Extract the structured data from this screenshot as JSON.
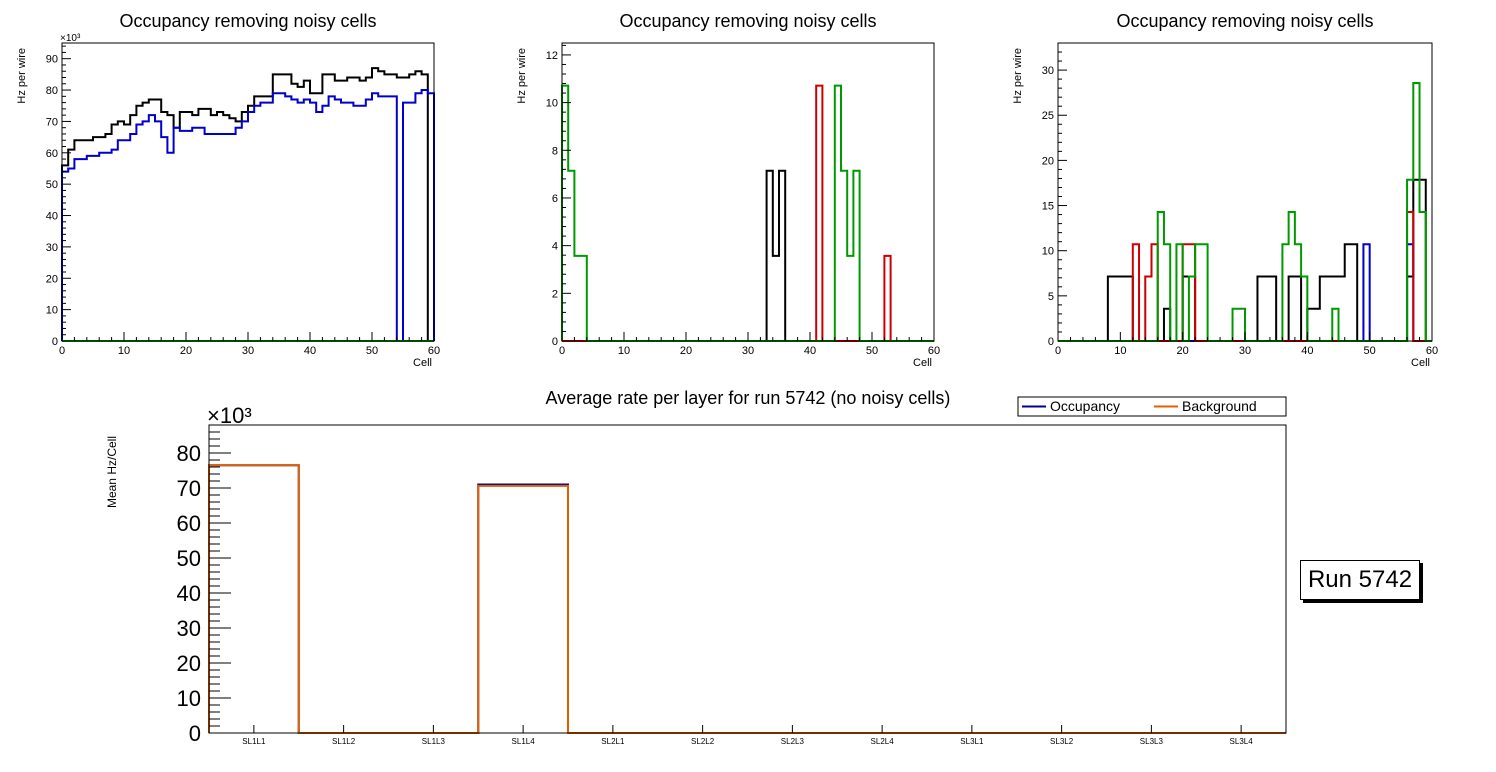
{
  "colors": {
    "black": "#000000",
    "blue": "#0000cc",
    "red": "#cc0000",
    "green": "#009900",
    "orange": "#e06000",
    "navy": "#000099"
  },
  "run_label": "Run 5742",
  "chart_data": [
    {
      "type": "step",
      "title": "Occupancy removing noisy cells",
      "xlabel": "Cell",
      "ylabel": "Hz per wire",
      "exponent_label": "×10³",
      "xlim": [
        0,
        60
      ],
      "ylim": [
        0,
        95000
      ],
      "xticks": [
        "0",
        "10",
        "20",
        "30",
        "40",
        "50",
        "60"
      ],
      "yticks": [
        "0",
        "10",
        "20",
        "30",
        "40",
        "50",
        "60",
        "70",
        "80",
        "90"
      ],
      "ytick_values": [
        0,
        10000,
        20000,
        30000,
        40000,
        50000,
        60000,
        70000,
        80000,
        90000
      ],
      "series": [
        {
          "name": "black",
          "color": "black",
          "values": [
            56000,
            61000,
            64000,
            64000,
            64000,
            65000,
            65000,
            66000,
            69000,
            70000,
            69000,
            72000,
            75000,
            76000,
            77000,
            77000,
            73000,
            72000,
            68000,
            73000,
            73000,
            72000,
            74000,
            74000,
            72000,
            73000,
            72000,
            71000,
            70000,
            73000,
            75000,
            78000,
            78000,
            78000,
            85000,
            85000,
            85000,
            82000,
            81000,
            83000,
            79000,
            79000,
            85000,
            85000,
            83000,
            83000,
            84000,
            84000,
            83000,
            84000,
            87000,
            86000,
            85000,
            85000,
            84000,
            84000,
            85000,
            86000,
            85000,
            0
          ]
        },
        {
          "name": "blue",
          "color": "blue",
          "values": [
            54000,
            55000,
            58000,
            58000,
            59000,
            59000,
            60000,
            60000,
            61000,
            64000,
            64000,
            66000,
            69000,
            70000,
            72000,
            70000,
            65000,
            60000,
            68000,
            67000,
            67000,
            68000,
            68000,
            66000,
            66000,
            66000,
            66000,
            66000,
            68000,
            70000,
            73000,
            75000,
            76000,
            76000,
            79000,
            79000,
            78000,
            77000,
            76000,
            77000,
            76000,
            73000,
            75000,
            78000,
            77000,
            76000,
            76000,
            75000,
            75000,
            77000,
            79000,
            78000,
            78000,
            78000,
            0,
            76000,
            76000,
            79000,
            80000,
            79000
          ]
        },
        {
          "name": "green",
          "color": "green",
          "values": [
            0,
            0,
            0,
            0,
            0,
            0,
            0,
            0,
            0,
            0,
            0,
            0,
            0,
            0,
            0,
            0,
            0,
            0,
            0,
            0,
            0,
            0,
            0,
            0,
            0,
            0,
            0,
            0,
            0,
            0,
            0,
            0,
            0,
            0,
            0,
            0,
            0,
            0,
            0,
            0,
            0,
            0,
            0,
            0,
            0,
            0,
            0,
            0,
            0,
            0,
            0,
            0,
            0,
            0,
            0,
            0,
            0,
            0,
            0,
            0
          ]
        }
      ]
    },
    {
      "type": "step",
      "title": "Occupancy removing noisy cells",
      "xlabel": "Cell",
      "ylabel": "Hz per wire",
      "exponent_label": "",
      "xlim": [
        0,
        60
      ],
      "ylim": [
        0,
        12.5
      ],
      "xticks": [
        "0",
        "10",
        "20",
        "30",
        "40",
        "50",
        "60"
      ],
      "yticks": [
        "0",
        "2",
        "4",
        "6",
        "8",
        "10",
        "12"
      ],
      "ytick_values": [
        0,
        2,
        4,
        6,
        8,
        10,
        12
      ],
      "series": [
        {
          "name": "black",
          "color": "black",
          "values": [
            0,
            0,
            0,
            0,
            0,
            0,
            0,
            0,
            0,
            0,
            0,
            0,
            0,
            0,
            0,
            0,
            0,
            0,
            0,
            0,
            0,
            0,
            0,
            0,
            0,
            0,
            0,
            0,
            0,
            0,
            0,
            0,
            0,
            7.14,
            3.57,
            7.14,
            0,
            0,
            0,
            0,
            0,
            0,
            0,
            0,
            0,
            0,
            0,
            0,
            0,
            0,
            0,
            0,
            0,
            0,
            0,
            0,
            0,
            0,
            0,
            0
          ]
        },
        {
          "name": "red",
          "color": "red",
          "values": [
            0,
            0,
            0,
            0,
            0,
            0,
            0,
            0,
            0,
            0,
            0,
            0,
            0,
            0,
            0,
            0,
            0,
            0,
            0,
            0,
            0,
            0,
            0,
            0,
            0,
            0,
            0,
            0,
            0,
            0,
            0,
            0,
            0,
            0,
            0,
            0,
            0,
            0,
            0,
            0,
            0,
            10.71,
            0,
            0,
            0,
            0,
            0,
            0,
            0,
            0,
            0,
            0,
            3.57,
            0,
            0,
            0,
            0,
            0,
            0,
            0
          ]
        },
        {
          "name": "green",
          "color": "green",
          "values": [
            10.71,
            7.14,
            3.57,
            3.57,
            0,
            0,
            0,
            0,
            0,
            0,
            0,
            0,
            0,
            0,
            0,
            0,
            0,
            0,
            0,
            0,
            0,
            0,
            0,
            0,
            0,
            0,
            0,
            0,
            0,
            0,
            0,
            0,
            0,
            0,
            0,
            0,
            0,
            0,
            0,
            0,
            0,
            0,
            0,
            0,
            10.71,
            7.14,
            3.57,
            7.14,
            0,
            0,
            0,
            0,
            0,
            0,
            0,
            0,
            0,
            0,
            0,
            0
          ]
        }
      ]
    },
    {
      "type": "step",
      "title": "Occupancy removing noisy cells",
      "xlabel": "Cell",
      "ylabel": "Hz per wire",
      "exponent_label": "",
      "xlim": [
        0,
        60
      ],
      "ylim": [
        0,
        33
      ],
      "xticks": [
        "0",
        "10",
        "20",
        "30",
        "40",
        "50",
        "60"
      ],
      "yticks": [
        "0",
        "5",
        "10",
        "15",
        "20",
        "25",
        "30"
      ],
      "ytick_values": [
        0,
        5,
        10,
        15,
        20,
        25,
        30
      ],
      "series": [
        {
          "name": "black",
          "color": "black",
          "values": [
            0,
            0,
            0,
            0,
            0,
            0,
            0,
            0,
            7.14,
            7.14,
            7.14,
            7.14,
            0,
            0,
            0,
            0,
            0,
            3.57,
            0,
            0,
            7.14,
            7.14,
            0,
            0,
            0,
            0,
            0,
            0,
            0,
            0,
            0,
            0,
            7.14,
            7.14,
            7.14,
            0,
            0,
            7.14,
            7.14,
            0,
            3.57,
            3.57,
            7.14,
            7.14,
            7.14,
            7.14,
            10.71,
            10.71,
            0,
            0,
            0,
            0,
            0,
            0,
            0,
            0,
            7.14,
            17.86,
            17.86,
            0
          ]
        },
        {
          "name": "blue",
          "color": "blue",
          "values": [
            0,
            0,
            0,
            0,
            0,
            0,
            0,
            0,
            0,
            0,
            0,
            0,
            0,
            0,
            0,
            0,
            0,
            0,
            0,
            0,
            0,
            0,
            0,
            0,
            0,
            0,
            0,
            0,
            0,
            0,
            0,
            0,
            0,
            0,
            0,
            0,
            0,
            0,
            0,
            0,
            0,
            0,
            0,
            0,
            0,
            0,
            0,
            0,
            0,
            10.71,
            0,
            0,
            0,
            0,
            0,
            0,
            10.71,
            0,
            0,
            0
          ]
        },
        {
          "name": "red",
          "color": "red",
          "values": [
            0,
            0,
            0,
            0,
            0,
            0,
            0,
            0,
            0,
            0,
            0,
            0,
            10.71,
            0,
            7.14,
            10.71,
            0,
            0,
            0,
            0,
            10.71,
            10.71,
            0,
            0,
            0,
            0,
            0,
            0,
            0,
            0,
            0,
            0,
            0,
            0,
            0,
            0,
            0,
            0,
            0,
            0,
            0,
            0,
            0,
            0,
            0,
            0,
            0,
            0,
            0,
            0,
            0,
            0,
            0,
            0,
            0,
            0,
            14.29,
            0,
            0,
            0
          ]
        },
        {
          "name": "green",
          "color": "green",
          "values": [
            0,
            0,
            0,
            0,
            0,
            0,
            0,
            0,
            0,
            0,
            0,
            0,
            0,
            0,
            0,
            0,
            14.29,
            10.71,
            0,
            10.71,
            0,
            7.14,
            10.71,
            10.71,
            0,
            0,
            0,
            0,
            3.57,
            3.57,
            0,
            0,
            0,
            0,
            0,
            0,
            10.71,
            14.29,
            10.71,
            7.14,
            0,
            0,
            0,
            0,
            3.57,
            0,
            0,
            0,
            0,
            0,
            0,
            0,
            0,
            0,
            0,
            0,
            17.86,
            28.57,
            14.29,
            0
          ]
        }
      ]
    },
    {
      "type": "step",
      "title": "Average rate per layer for run 5742 (no noisy cells)",
      "xlabel": "",
      "ylabel": "Mean Hz/Cell",
      "exponent_label": "×10³",
      "ylim": [
        0,
        88000
      ],
      "categories": [
        "SL1L1",
        "SL1L2",
        "SL1L3",
        "SL1L4",
        "SL2L1",
        "SL2L2",
        "SL2L3",
        "SL2L4",
        "SL3L1",
        "SL3L2",
        "SL3L3",
        "SL3L4"
      ],
      "yticks": [
        "0",
        "10",
        "20",
        "30",
        "40",
        "50",
        "60",
        "70",
        "80"
      ],
      "ytick_values": [
        0,
        10000,
        20000,
        30000,
        40000,
        50000,
        60000,
        70000,
        80000
      ],
      "legend": [
        "Occupancy",
        "Background"
      ],
      "series": [
        {
          "name": "Occupancy",
          "color": "navy",
          "values": [
            76500,
            0,
            0,
            71000,
            0,
            0,
            0,
            0,
            0,
            0,
            0,
            0
          ]
        },
        {
          "name": "Background",
          "color": "orange",
          "values": [
            76500,
            0,
            0,
            70600,
            0,
            0,
            0,
            0,
            0,
            0,
            0,
            0
          ]
        }
      ]
    }
  ]
}
